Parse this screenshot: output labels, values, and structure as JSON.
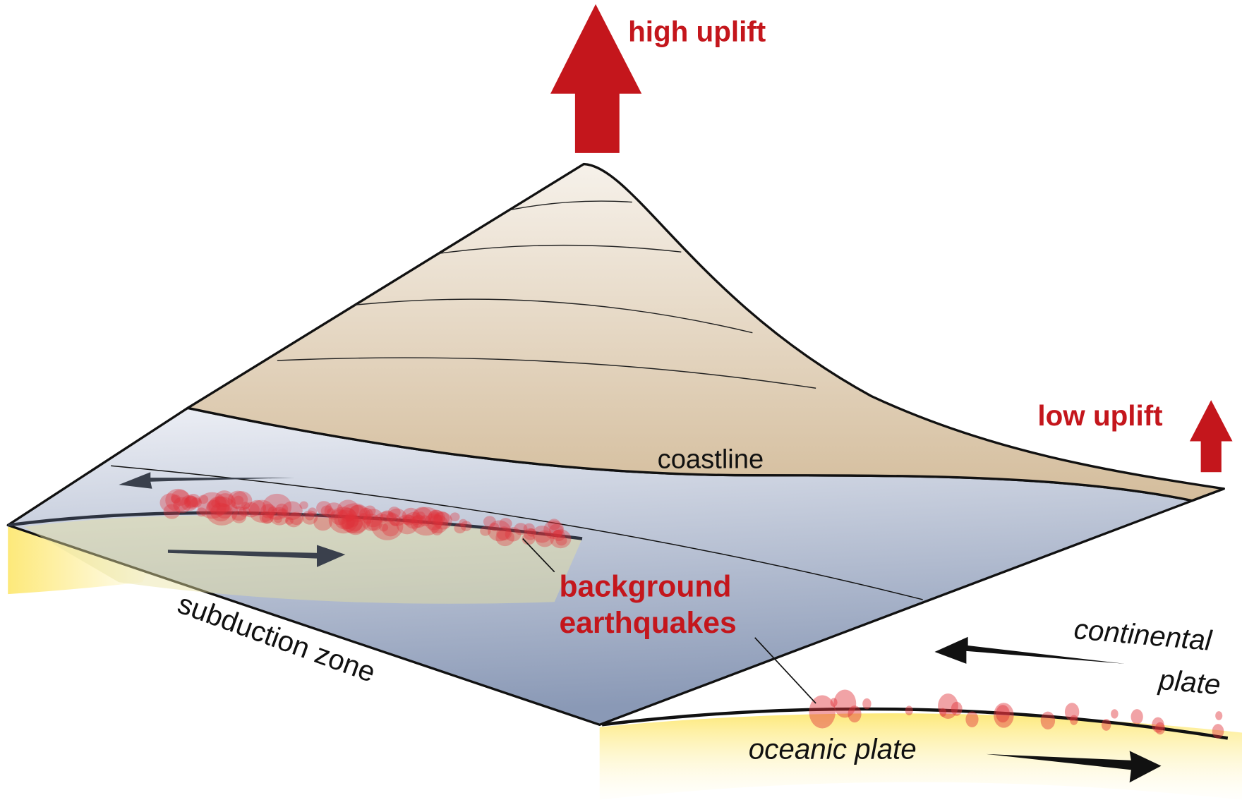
{
  "labels": {
    "high_uplift": "high uplift",
    "low_uplift": "low uplift",
    "coastline": "coastline",
    "background_earthquakes": [
      "background",
      "earthquakes"
    ],
    "subduction_zone": "subduction zone",
    "continental_plate": [
      "continental",
      "plate"
    ],
    "oceanic_plate": "oceanic plate"
  }
}
